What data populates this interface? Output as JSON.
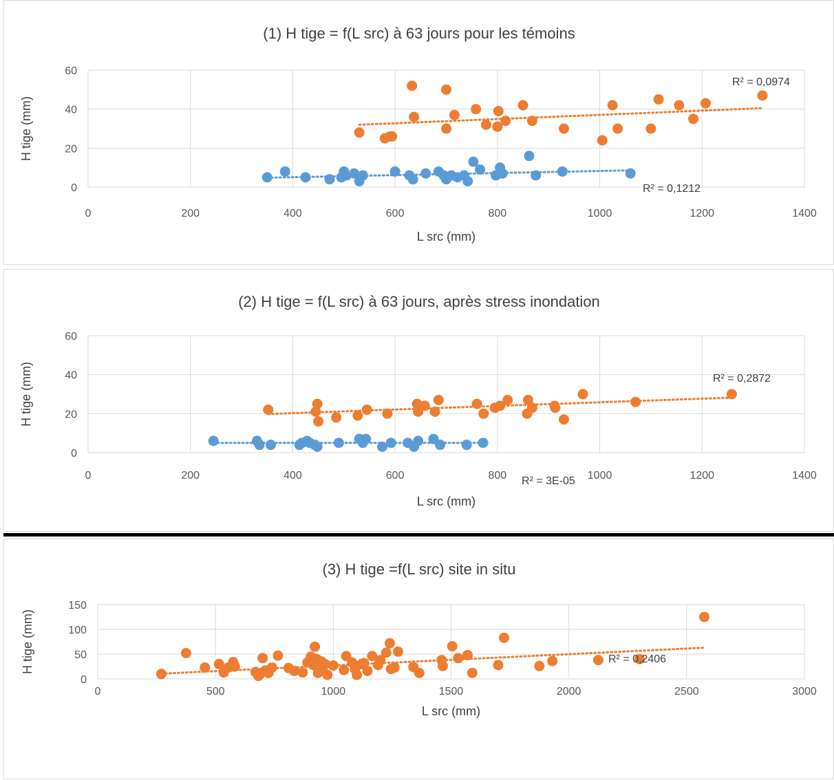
{
  "chart_data": [
    {
      "type": "scatter",
      "title": "(1) H tige = f(L src) à 63 jours pour les témoins",
      "xlabel": "L src (mm)",
      "ylabel": "H tige (mm)",
      "xlim": [
        0,
        1400
      ],
      "ylim": [
        0,
        60
      ],
      "xticks": [
        "0",
        "200",
        "400",
        "600",
        "800",
        "1000",
        "1200",
        "1400"
      ],
      "yticks": [
        "0",
        "20",
        "40",
        "60"
      ],
      "grid": true,
      "series": [
        {
          "color": "#5b9bd5",
          "points": [
            [
              350,
              5
            ],
            [
              385,
              8
            ],
            [
              425,
              5
            ],
            [
              472,
              4
            ],
            [
              495,
              5
            ],
            [
              500,
              8
            ],
            [
              505,
              6
            ],
            [
              520,
              7
            ],
            [
              530,
              3
            ],
            [
              537,
              6
            ],
            [
              600,
              8
            ],
            [
              628,
              6
            ],
            [
              635,
              4
            ],
            [
              660,
              7
            ],
            [
              685,
              8
            ],
            [
              695,
              6
            ],
            [
              700,
              4
            ],
            [
              710,
              6
            ],
            [
              722,
              5
            ],
            [
              735,
              6
            ],
            [
              742,
              3
            ],
            [
              753,
              13
            ],
            [
              766,
              9
            ],
            [
              797,
              6
            ],
            [
              805,
              10
            ],
            [
              810,
              7
            ],
            [
              862,
              16
            ],
            [
              875,
              6
            ],
            [
              927,
              8
            ],
            [
              1060,
              7
            ]
          ],
          "r2_label": "R² = 0,1212",
          "trend": {
            "x0": 350,
            "y0": 4.8,
            "x1": 1060,
            "y1": 8.6
          }
        },
        {
          "color": "#ed7d31",
          "points": [
            [
              530,
              28
            ],
            [
              580,
              25
            ],
            [
              590,
              26
            ],
            [
              594,
              26
            ],
            [
              633,
              52
            ],
            [
              637,
              36
            ],
            [
              700,
              50
            ],
            [
              700,
              30
            ],
            [
              716,
              37
            ],
            [
              758,
              40
            ],
            [
              778,
              32
            ],
            [
              800,
              31
            ],
            [
              802,
              39
            ],
            [
              816,
              34
            ],
            [
              850,
              42
            ],
            [
              868,
              34
            ],
            [
              930,
              30
            ],
            [
              1005,
              24
            ],
            [
              1025,
              42
            ],
            [
              1035,
              30
            ],
            [
              1100,
              30
            ],
            [
              1115,
              45
            ],
            [
              1155,
              42
            ],
            [
              1183,
              35
            ],
            [
              1207,
              43
            ],
            [
              1318,
              47
            ]
          ],
          "r2_label": "R² = 0,0974",
          "trend": {
            "x0": 530,
            "y0": 32.0,
            "x1": 1318,
            "y1": 40.5
          }
        }
      ]
    },
    {
      "type": "scatter",
      "title": "(2) H tige = f(L src) à 63 jours, après stress inondation",
      "xlabel": "L src (mm)",
      "ylabel": "H tige (mm)",
      "xlim": [
        0,
        1400
      ],
      "ylim": [
        0,
        60
      ],
      "xticks": [
        "0",
        "200",
        "400",
        "600",
        "800",
        "1000",
        "1200",
        "1400"
      ],
      "yticks": [
        "0",
        "20",
        "40",
        "60"
      ],
      "grid": true,
      "series": [
        {
          "color": "#5b9bd5",
          "points": [
            [
              245,
              6
            ],
            [
              330,
              6
            ],
            [
              335,
              4
            ],
            [
              357,
              4
            ],
            [
              413,
              4
            ],
            [
              418,
              5
            ],
            [
              428,
              6
            ],
            [
              433,
              5
            ],
            [
              443,
              4
            ],
            [
              448,
              3
            ],
            [
              490,
              5
            ],
            [
              530,
              7
            ],
            [
              537,
              5
            ],
            [
              543,
              7
            ],
            [
              575,
              3
            ],
            [
              592,
              5
            ],
            [
              625,
              5
            ],
            [
              637,
              3
            ],
            [
              645,
              6
            ],
            [
              675,
              7
            ],
            [
              688,
              4
            ],
            [
              740,
              4
            ],
            [
              772,
              5
            ]
          ],
          "r2_label": "R² = 3E-05",
          "trend": {
            "x0": 245,
            "y0": 5.0,
            "x1": 772,
            "y1": 5.0
          }
        },
        {
          "color": "#ed7d31",
          "points": [
            [
              352,
              22
            ],
            [
              445,
              21
            ],
            [
              448,
              25
            ],
            [
              450,
              16
            ],
            [
              485,
              18
            ],
            [
              527,
              19
            ],
            [
              545,
              22
            ],
            [
              585,
              20
            ],
            [
              643,
              25
            ],
            [
              645,
              21
            ],
            [
              658,
              24
            ],
            [
              678,
              21
            ],
            [
              685,
              27
            ],
            [
              760,
              25
            ],
            [
              773,
              20
            ],
            [
              795,
              23
            ],
            [
              805,
              24
            ],
            [
              820,
              27
            ],
            [
              858,
              20
            ],
            [
              860,
              27
            ],
            [
              868,
              23
            ],
            [
              912,
              24
            ],
            [
              913,
              23
            ],
            [
              930,
              17
            ],
            [
              967,
              30
            ],
            [
              1070,
              26
            ],
            [
              1258,
              30
            ]
          ],
          "r2_label": "R² = 0,2872",
          "trend": {
            "x0": 352,
            "y0": 19.8,
            "x1": 1258,
            "y1": 28.2
          }
        }
      ]
    },
    {
      "type": "scatter",
      "title": "(3) H tige =f(L src) site in situ",
      "xlabel": "L src (mm)",
      "ylabel": "H tige (mm)",
      "xlim": [
        0,
        3000
      ],
      "ylim": [
        0,
        150
      ],
      "xticks": [
        "0",
        "500",
        "1000",
        "1500",
        "2000",
        "2500",
        "3000"
      ],
      "yticks": [
        "0",
        "50",
        "100",
        "150"
      ],
      "grid": true,
      "series": [
        {
          "color": "#ed7d31",
          "points": [
            [
              270,
              10
            ],
            [
              375,
              52
            ],
            [
              455,
              23
            ],
            [
              515,
              30
            ],
            [
              535,
              13
            ],
            [
              555,
              23
            ],
            [
              575,
              34
            ],
            [
              582,
              25
            ],
            [
              670,
              14
            ],
            [
              682,
              6
            ],
            [
              690,
              10
            ],
            [
              700,
              42
            ],
            [
              712,
              17
            ],
            [
              725,
              12
            ],
            [
              740,
              23
            ],
            [
              765,
              47
            ],
            [
              810,
              22
            ],
            [
              835,
              16
            ],
            [
              870,
              13
            ],
            [
              890,
              33
            ],
            [
              905,
              45
            ],
            [
              915,
              28
            ],
            [
              922,
              65
            ],
            [
              930,
              40
            ],
            [
              935,
              12
            ],
            [
              945,
              24
            ],
            [
              950,
              35
            ],
            [
              955,
              18
            ],
            [
              965,
              30
            ],
            [
              975,
              8
            ],
            [
              1000,
              27
            ],
            [
              1045,
              18
            ],
            [
              1055,
              46
            ],
            [
              1080,
              33
            ],
            [
              1092,
              20
            ],
            [
              1100,
              8
            ],
            [
              1120,
              30
            ],
            [
              1130,
              32
            ],
            [
              1145,
              16
            ],
            [
              1165,
              46
            ],
            [
              1190,
              28
            ],
            [
              1200,
              38
            ],
            [
              1225,
              53
            ],
            [
              1240,
              72
            ],
            [
              1245,
              20
            ],
            [
              1260,
              23
            ],
            [
              1275,
              55
            ],
            [
              1340,
              24
            ],
            [
              1365,
              12
            ],
            [
              1460,
              38
            ],
            [
              1465,
              26
            ],
            [
              1505,
              66
            ],
            [
              1530,
              42
            ],
            [
              1570,
              48
            ],
            [
              1590,
              12
            ],
            [
              1700,
              28
            ],
            [
              1725,
              83
            ],
            [
              1875,
              26
            ],
            [
              1930,
              36
            ],
            [
              2125,
              38
            ],
            [
              2300,
              40
            ],
            [
              2575,
              125
            ]
          ],
          "r2_label": "R² = 0,2406",
          "trend": {
            "x0": 270,
            "y0": 10.5,
            "x1": 2575,
            "y1": 63.0
          }
        }
      ]
    }
  ]
}
